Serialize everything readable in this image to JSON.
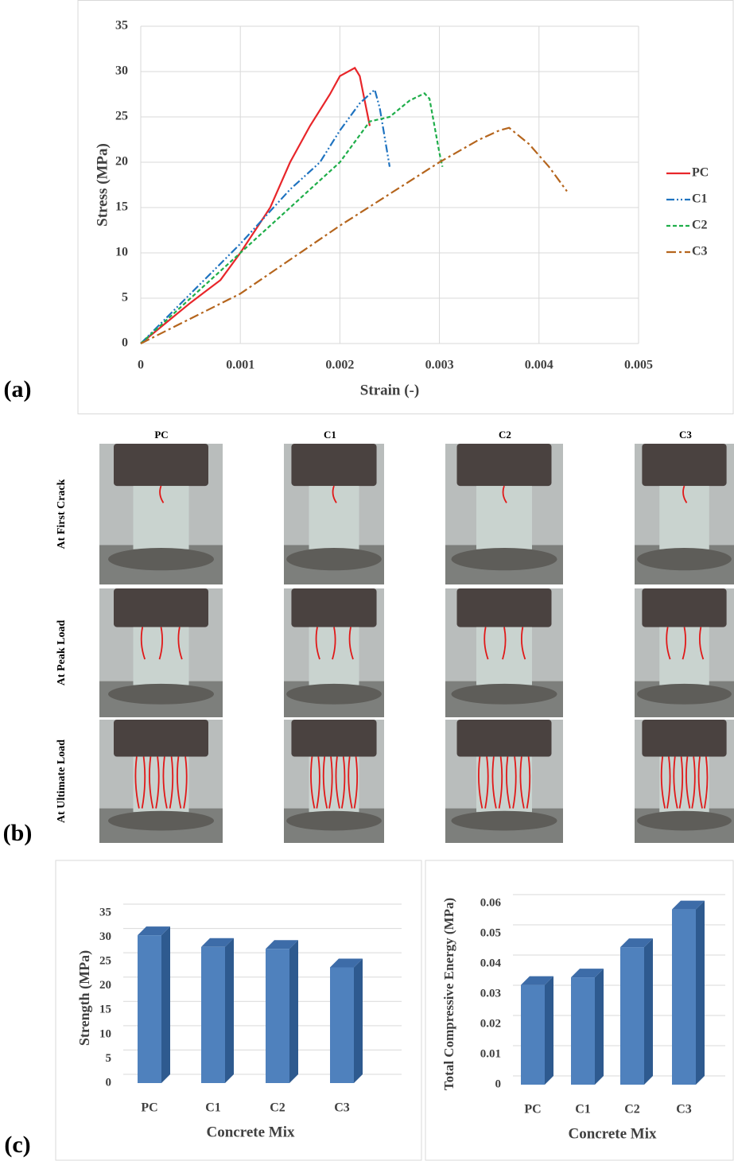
{
  "panel_labels": [
    "(a)",
    "(b)",
    "(c)"
  ],
  "chart_data": [
    {
      "type": "line",
      "xlabel": "Strain (-)",
      "ylabel": "Stress (MPa)",
      "xlim": [
        0,
        0.005
      ],
      "xticks": [
        0,
        0.001,
        0.002,
        0.003,
        0.004,
        0.005
      ],
      "ylim": [
        0,
        35
      ],
      "yticks": [
        0,
        5,
        10,
        15,
        20,
        25,
        30,
        35
      ],
      "grid": true,
      "legend": "right",
      "series": [
        {
          "name": "PC",
          "color": "#e8262a",
          "line_style": "solid",
          "x": [
            0,
            0.0005,
            0.0008,
            0.001,
            0.0013,
            0.0015,
            0.0017,
            0.0019,
            0.002,
            0.00215,
            0.0022,
            0.0023
          ],
          "values": [
            0,
            4.5,
            7,
            10,
            15,
            20,
            24,
            27.5,
            29.5,
            30.4,
            29.5,
            24
          ]
        },
        {
          "name": "C1",
          "color": "#1f73c0",
          "line_style": "dash-dot-dot",
          "x": [
            0,
            0.0005,
            0.001,
            0.0015,
            0.0018,
            0.002,
            0.0022,
            0.00235,
            0.0024,
            0.0025
          ],
          "values": [
            0,
            5.5,
            11,
            17,
            20,
            23.5,
            26.5,
            28,
            26,
            19.5
          ]
        },
        {
          "name": "C2",
          "color": "#1fae4a",
          "line_style": "dashed",
          "x": [
            0,
            0.0005,
            0.001,
            0.0015,
            0.002,
            0.0023,
            0.0025,
            0.0027,
            0.00285,
            0.0029,
            0.003,
            0.00303
          ],
          "values": [
            0,
            5,
            10,
            15,
            20,
            24.5,
            25,
            26.8,
            27.6,
            27,
            21,
            19.5
          ]
        },
        {
          "name": "C3",
          "color": "#b5651d",
          "line_style": "dash-dot",
          "x": [
            0,
            0.001,
            0.002,
            0.003,
            0.0034,
            0.0036,
            0.0037,
            0.0039,
            0.0041,
            0.00428
          ],
          "values": [
            0,
            5.5,
            13,
            20,
            22.5,
            23.5,
            23.8,
            22,
            19.5,
            16.8
          ]
        }
      ]
    },
    {
      "type": "bar",
      "xlabel": "Concrete Mix",
      "ylabel": "Strength (MPa)",
      "categories": [
        "PC",
        "C1",
        "C2",
        "C3"
      ],
      "values": [
        30.4,
        28,
        27.6,
        23.8
      ],
      "color": "#4f81bd",
      "ylim": [
        0,
        35
      ],
      "yticks": [
        0,
        5,
        10,
        15,
        20,
        25,
        30,
        35
      ],
      "grid": true
    },
    {
      "type": "bar",
      "xlabel": "Concrete Mix",
      "ylabel": "Total Compressive Energy (MPa)",
      "categories": [
        "PC",
        "C1",
        "C2",
        "C3"
      ],
      "values": [
        0.033,
        0.0355,
        0.0455,
        0.058
      ],
      "color": "#4f81bd",
      "ylim": [
        0,
        0.06
      ],
      "yticks": [
        0,
        0.01,
        0.02,
        0.03,
        0.04,
        0.05,
        0.06
      ],
      "grid": true
    }
  ],
  "photo_grid": {
    "columns": [
      "PC",
      "C1",
      "C2",
      "C3"
    ],
    "rows": [
      "At First Crack",
      "At Peak Load",
      "At Ultimate Load"
    ]
  }
}
